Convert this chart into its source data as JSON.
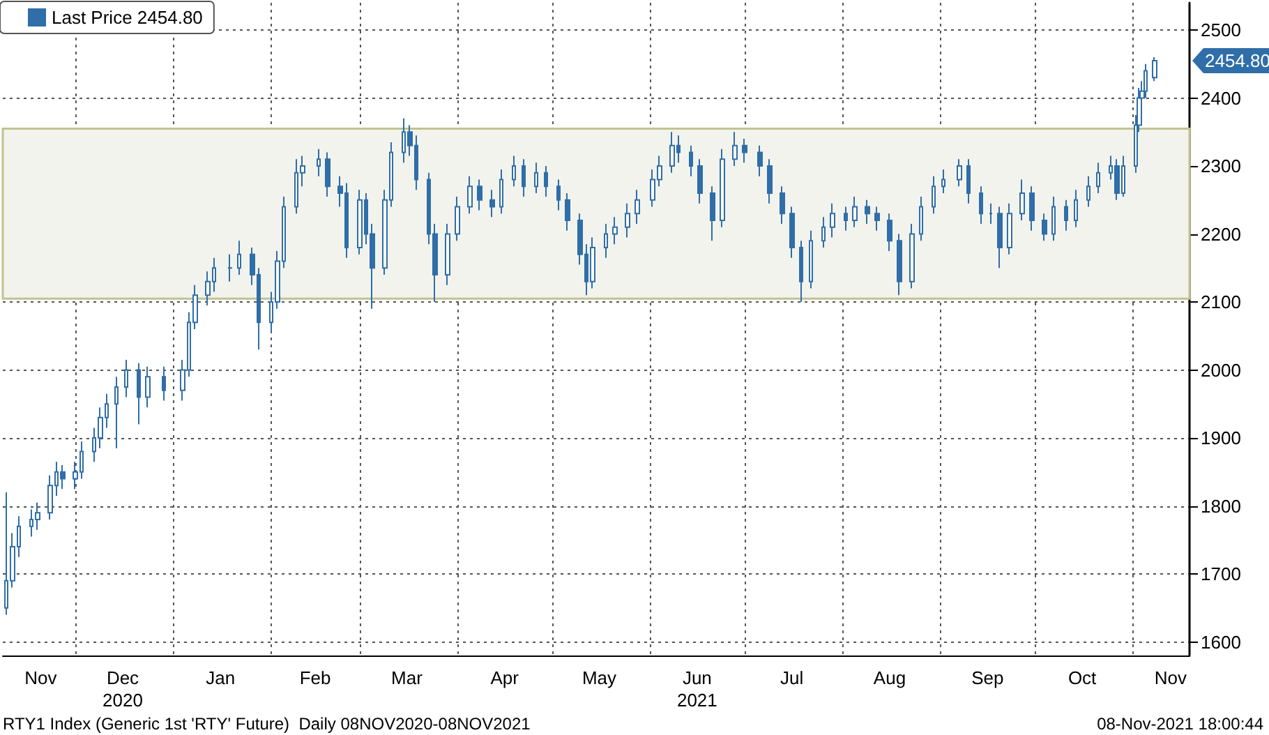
{
  "chart_data": {
    "type": "candlestick",
    "x": [
      "2020-11-09",
      "2020-11-11",
      "2020-11-13",
      "2020-11-17",
      "2020-11-19",
      "2020-11-23",
      "2020-11-25",
      "2020-11-27",
      "2020-12-01",
      "2020-12-03",
      "2020-12-07",
      "2020-12-09",
      "2020-12-11",
      "2020-12-14",
      "2020-12-17",
      "2020-12-21",
      "2020-12-24",
      "2020-12-29",
      "2021-01-04",
      "2021-01-06",
      "2021-01-08",
      "2021-01-12",
      "2021-01-14",
      "2021-01-19",
      "2021-01-22",
      "2021-01-26",
      "2021-01-28",
      "2021-02-01",
      "2021-02-03",
      "2021-02-05",
      "2021-02-09",
      "2021-02-11",
      "2021-02-16",
      "2021-02-19",
      "2021-02-23",
      "2021-02-25",
      "2021-03-01",
      "2021-03-03",
      "2021-03-05",
      "2021-03-09",
      "2021-03-11",
      "2021-03-15",
      "2021-03-17",
      "2021-03-19",
      "2021-03-23",
      "2021-03-25",
      "2021-03-29",
      "2021-04-01",
      "2021-04-05",
      "2021-04-08",
      "2021-04-12",
      "2021-04-15",
      "2021-04-19",
      "2021-04-22",
      "2021-04-26",
      "2021-04-29",
      "2021-05-03",
      "2021-05-06",
      "2021-05-10",
      "2021-05-12",
      "2021-05-14",
      "2021-05-18",
      "2021-05-21",
      "2021-05-25",
      "2021-05-28",
      "2021-06-02",
      "2021-06-04",
      "2021-06-08",
      "2021-06-10",
      "2021-06-14",
      "2021-06-17",
      "2021-06-21",
      "2021-06-24",
      "2021-06-28",
      "2021-07-01",
      "2021-07-06",
      "2021-07-09",
      "2021-07-13",
      "2021-07-16",
      "2021-07-19",
      "2021-07-22",
      "2021-07-26",
      "2021-07-29",
      "2021-08-02",
      "2021-08-05",
      "2021-08-09",
      "2021-08-12",
      "2021-08-16",
      "2021-08-19",
      "2021-08-23",
      "2021-08-26",
      "2021-08-30",
      "2021-09-02",
      "2021-09-07",
      "2021-09-10",
      "2021-09-14",
      "2021-09-17",
      "2021-09-20",
      "2021-09-23",
      "2021-09-27",
      "2021-09-30",
      "2021-10-04",
      "2021-10-07",
      "2021-10-11",
      "2021-10-14",
      "2021-10-18",
      "2021-10-21",
      "2021-10-25",
      "2021-10-27",
      "2021-10-29",
      "2021-11-02",
      "2021-11-03",
      "2021-11-04",
      "2021-11-05",
      "2021-11-08"
    ],
    "series": [
      {
        "name": "Last Price 2454.80",
        "color": "#2f6ea8",
        "ohlc": [
          [
            1650,
            1820,
            1640,
            1690
          ],
          [
            1690,
            1760,
            1680,
            1740
          ],
          [
            1740,
            1785,
            1725,
            1770
          ],
          [
            1770,
            1795,
            1755,
            1780
          ],
          [
            1780,
            1805,
            1765,
            1790
          ],
          [
            1790,
            1845,
            1780,
            1830
          ],
          [
            1830,
            1865,
            1815,
            1850
          ],
          [
            1850,
            1860,
            1825,
            1840
          ],
          [
            1840,
            1865,
            1825,
            1850
          ],
          [
            1850,
            1895,
            1840,
            1880
          ],
          [
            1880,
            1915,
            1865,
            1900
          ],
          [
            1900,
            1945,
            1885,
            1930
          ],
          [
            1930,
            1965,
            1915,
            1950
          ],
          [
            1950,
            1990,
            1885,
            1975
          ],
          [
            1975,
            2015,
            1960,
            2000
          ],
          [
            2000,
            2010,
            1920,
            1960
          ],
          [
            1960,
            2005,
            1945,
            1990
          ],
          [
            1990,
            2005,
            1955,
            1970
          ],
          [
            1970,
            2015,
            1955,
            2000
          ],
          [
            2000,
            2085,
            1990,
            2070
          ],
          [
            2070,
            2125,
            2060,
            2110
          ],
          [
            2110,
            2145,
            2095,
            2130
          ],
          [
            2130,
            2165,
            2115,
            2150
          ],
          [
            2150,
            2170,
            2130,
            2150
          ],
          [
            2150,
            2190,
            2140,
            2170
          ],
          [
            2170,
            2180,
            2125,
            2140
          ],
          [
            2140,
            2150,
            2030,
            2070
          ],
          [
            2070,
            2115,
            2055,
            2100
          ],
          [
            2100,
            2175,
            2090,
            2160
          ],
          [
            2160,
            2255,
            2150,
            2240
          ],
          [
            2240,
            2310,
            2230,
            2290
          ],
          [
            2290,
            2315,
            2270,
            2300
          ],
          [
            2300,
            2325,
            2285,
            2310
          ],
          [
            2310,
            2320,
            2255,
            2270
          ],
          [
            2270,
            2285,
            2240,
            2260
          ],
          [
            2260,
            2275,
            2165,
            2180
          ],
          [
            2180,
            2265,
            2170,
            2250
          ],
          [
            2250,
            2260,
            2185,
            2200
          ],
          [
            2200,
            2215,
            2090,
            2150
          ],
          [
            2150,
            2265,
            2140,
            2250
          ],
          [
            2250,
            2335,
            2240,
            2320
          ],
          [
            2320,
            2370,
            2305,
            2350
          ],
          [
            2350,
            2360,
            2315,
            2330
          ],
          [
            2330,
            2345,
            2265,
            2280
          ],
          [
            2280,
            2290,
            2185,
            2200
          ],
          [
            2200,
            2215,
            2100,
            2140
          ],
          [
            2140,
            2215,
            2125,
            2200
          ],
          [
            2200,
            2255,
            2190,
            2240
          ],
          [
            2240,
            2285,
            2230,
            2270
          ],
          [
            2270,
            2280,
            2235,
            2250
          ],
          [
            2250,
            2265,
            2225,
            2240
          ],
          [
            2240,
            2295,
            2230,
            2280
          ],
          [
            2280,
            2315,
            2270,
            2300
          ],
          [
            2300,
            2310,
            2255,
            2270
          ],
          [
            2270,
            2305,
            2260,
            2290
          ],
          [
            2290,
            2300,
            2255,
            2270
          ],
          [
            2270,
            2280,
            2235,
            2250
          ],
          [
            2250,
            2260,
            2205,
            2220
          ],
          [
            2220,
            2230,
            2155,
            2170
          ],
          [
            2170,
            2185,
            2110,
            2130
          ],
          [
            2130,
            2195,
            2120,
            2180
          ],
          [
            2180,
            2215,
            2165,
            2200
          ],
          [
            2200,
            2225,
            2185,
            2210
          ],
          [
            2210,
            2245,
            2195,
            2230
          ],
          [
            2230,
            2265,
            2215,
            2250
          ],
          [
            2250,
            2295,
            2240,
            2280
          ],
          [
            2280,
            2315,
            2270,
            2300
          ],
          [
            2300,
            2350,
            2290,
            2330
          ],
          [
            2330,
            2345,
            2305,
            2320
          ],
          [
            2320,
            2330,
            2285,
            2300
          ],
          [
            2300,
            2310,
            2245,
            2260
          ],
          [
            2260,
            2270,
            2190,
            2220
          ],
          [
            2220,
            2325,
            2210,
            2310
          ],
          [
            2310,
            2350,
            2300,
            2330
          ],
          [
            2330,
            2340,
            2305,
            2320
          ],
          [
            2320,
            2330,
            2285,
            2300
          ],
          [
            2300,
            2310,
            2245,
            2260
          ],
          [
            2260,
            2270,
            2215,
            2230
          ],
          [
            2230,
            2240,
            2165,
            2180
          ],
          [
            2180,
            2190,
            2100,
            2130
          ],
          [
            2130,
            2205,
            2120,
            2190
          ],
          [
            2190,
            2225,
            2180,
            2210
          ],
          [
            2210,
            2245,
            2195,
            2230
          ],
          [
            2230,
            2240,
            2205,
            2220
          ],
          [
            2220,
            2255,
            2210,
            2240
          ],
          [
            2240,
            2250,
            2215,
            2230
          ],
          [
            2230,
            2240,
            2205,
            2220
          ],
          [
            2220,
            2230,
            2175,
            2190
          ],
          [
            2190,
            2200,
            2110,
            2130
          ],
          [
            2130,
            2215,
            2120,
            2200
          ],
          [
            2200,
            2255,
            2190,
            2240
          ],
          [
            2240,
            2285,
            2230,
            2270
          ],
          [
            2270,
            2295,
            2260,
            2280
          ],
          [
            2280,
            2310,
            2270,
            2300
          ],
          [
            2300,
            2310,
            2245,
            2260
          ],
          [
            2260,
            2270,
            2215,
            2230
          ],
          [
            2230,
            2245,
            2215,
            2230
          ],
          [
            2230,
            2240,
            2150,
            2180
          ],
          [
            2180,
            2245,
            2170,
            2230
          ],
          [
            2230,
            2280,
            2220,
            2260
          ],
          [
            2260,
            2270,
            2205,
            2220
          ],
          [
            2220,
            2230,
            2190,
            2200
          ],
          [
            2200,
            2255,
            2190,
            2240
          ],
          [
            2240,
            2250,
            2205,
            2220
          ],
          [
            2220,
            2265,
            2210,
            2250
          ],
          [
            2250,
            2285,
            2240,
            2270
          ],
          [
            2270,
            2305,
            2260,
            2290
          ],
          [
            2290,
            2315,
            2280,
            2300
          ],
          [
            2300,
            2310,
            2250,
            2260
          ],
          [
            2260,
            2315,
            2255,
            2300
          ],
          [
            2300,
            2375,
            2290,
            2360
          ],
          [
            2360,
            2415,
            2350,
            2400
          ],
          [
            2400,
            2425,
            2390,
            2410
          ],
          [
            2410,
            2450,
            2400,
            2440
          ],
          [
            2430,
            2460,
            2425,
            2454.8
          ]
        ]
      }
    ],
    "ylim": [
      1580,
      2540
    ],
    "yticks": [
      1600,
      1700,
      1800,
      1900,
      2000,
      2100,
      2200,
      2300,
      2400,
      2500
    ],
    "xlim": [
      "2020-11-08",
      "2021-11-19"
    ],
    "xticks": [
      {
        "value": "2020-11-20",
        "label": "Nov"
      },
      {
        "value": "2020-12-01",
        "label": null
      },
      {
        "value": "2020-12-16",
        "label": "Dec\n2020"
      },
      {
        "value": "2021-01-01",
        "label": null
      },
      {
        "value": "2021-01-16",
        "label": "Jan"
      },
      {
        "value": "2021-02-01",
        "label": null
      },
      {
        "value": "2021-02-15",
        "label": "Feb"
      },
      {
        "value": "2021-03-01",
        "label": null
      },
      {
        "value": "2021-03-16",
        "label": "Mar"
      },
      {
        "value": "2021-04-01",
        "label": null
      },
      {
        "value": "2021-04-16",
        "label": "Apr"
      },
      {
        "value": "2021-05-01",
        "label": null
      },
      {
        "value": "2021-05-16",
        "label": "May"
      },
      {
        "value": "2021-06-01",
        "label": null
      },
      {
        "value": "2021-06-16",
        "label": "Jun\n2021"
      },
      {
        "value": "2021-07-01",
        "label": null
      },
      {
        "value": "2021-07-16",
        "label": "Jul"
      },
      {
        "value": "2021-08-01",
        "label": null
      },
      {
        "value": "2021-08-16",
        "label": "Aug"
      },
      {
        "value": "2021-09-01",
        "label": null
      },
      {
        "value": "2021-09-16",
        "label": "Sep"
      },
      {
        "value": "2021-10-01",
        "label": null
      },
      {
        "value": "2021-10-16",
        "label": "Oct"
      },
      {
        "value": "2021-11-01",
        "label": null
      },
      {
        "value": "2021-11-13",
        "label": "Nov"
      }
    ],
    "bands": [
      {
        "axis": "y",
        "from": 2105,
        "to": 2355,
        "color": "#f2f3ec"
      }
    ],
    "annotations": [
      {
        "text": "2454.80",
        "x": "2021-11-08",
        "y": 2454.8
      },
      "RTY1 Index (Generic 1st 'RTY' Future)  Daily 08NOV2020-08NOV2021",
      "08-Nov-2021 18:00:44"
    ],
    "grid": true,
    "legend": "top left"
  }
}
